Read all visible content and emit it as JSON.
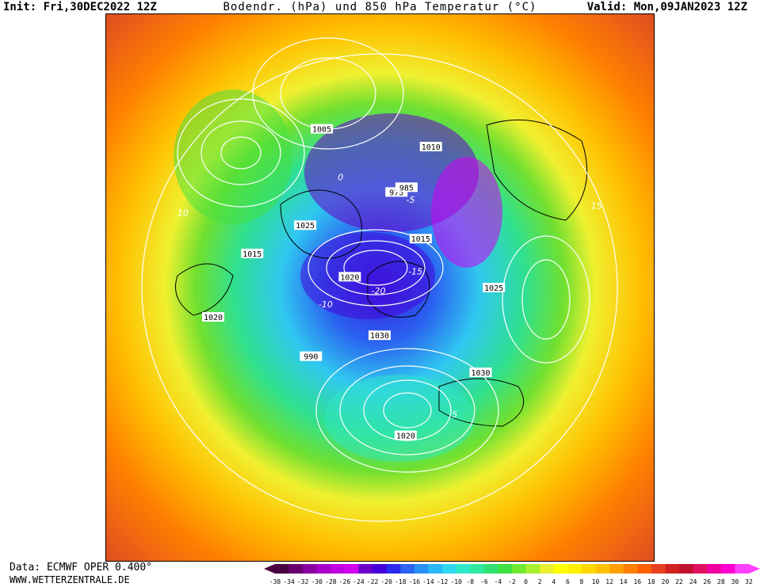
{
  "header": {
    "init_label": "Init: Fri,30DEC2022 12Z",
    "title": "Bodendr. (hPa) und 850 hPa Temperatur (°C)",
    "valid_label": "Valid: Mon,09JAN2023 12Z"
  },
  "footer": {
    "data_label": "Data: ECMWF OPER 0.400°",
    "site": "WWW.WETTERZENTRALE.DE"
  },
  "colorbar": {
    "ticks": [
      "-38",
      "-34",
      "-32",
      "-30",
      "-28",
      "-26",
      "-24",
      "-22",
      "-20",
      "-18",
      "-16",
      "-14",
      "-12",
      "-10",
      "-8",
      "-6",
      "-4",
      "-2",
      "0",
      "2",
      "4",
      "6",
      "8",
      "10",
      "12",
      "14",
      "16",
      "18",
      "20",
      "22",
      "24",
      "26",
      "28",
      "30",
      "32"
    ],
    "colors": [
      "#4a0040",
      "#6a0070",
      "#8a00a0",
      "#a800c8",
      "#c000e0",
      "#d000f0",
      "#6a00c8",
      "#4400d8",
      "#2a2af0",
      "#2a64f0",
      "#2a90f8",
      "#2ab8f8",
      "#30d8f0",
      "#30e8c8",
      "#30e8a0",
      "#30e070",
      "#40e040",
      "#70e830",
      "#a8f030",
      "#e8f030",
      "#ffff00",
      "#fff000",
      "#ffd800",
      "#ffc000",
      "#ffa000",
      "#ff8000",
      "#ff6000",
      "#e84020",
      "#d02020",
      "#c01030",
      "#e01060",
      "#f000a0",
      "#ff00d0",
      "#ff40ff"
    ]
  },
  "map": {
    "pressure_labels": [
      {
        "text": "1020",
        "lon": -70,
        "lat": 40
      },
      {
        "text": "1015",
        "lon": -95,
        "lat": 50
      },
      {
        "text": "1025",
        "lon": -120,
        "lat": 60
      },
      {
        "text": "1020",
        "lon": 20,
        "lat": 45
      },
      {
        "text": "1030",
        "lon": 60,
        "lat": 50
      },
      {
        "text": "1025",
        "lon": 100,
        "lat": 55
      },
      {
        "text": "1005",
        "lon": -150,
        "lat": 40
      },
      {
        "text": "1010",
        "lon": 170,
        "lat": 45
      },
      {
        "text": "990",
        "lon": -35,
        "lat": 60
      },
      {
        "text": "975",
        "lon": 180,
        "lat": 60
      },
      {
        "text": "985",
        "lon": 175,
        "lat": 58
      },
      {
        "text": "1015",
        "lon": 150,
        "lat": 70
      },
      {
        "text": "1030",
        "lon": 10,
        "lat": 75
      },
      {
        "text": "1020",
        "lon": -100,
        "lat": 80
      }
    ],
    "temperature_labels": [
      {
        "text": "-20",
        "lon": 0,
        "lat": 88
      },
      {
        "text": "-15",
        "lon": 120,
        "lat": 78
      },
      {
        "text": "-10",
        "lon": -60,
        "lat": 72
      },
      {
        "text": "-5",
        "lon": 170,
        "lat": 62
      },
      {
        "text": "0",
        "lon": -150,
        "lat": 55
      },
      {
        "text": "5",
        "lon": 40,
        "lat": 45
      },
      {
        "text": "10",
        "lon": -100,
        "lat": 30
      },
      {
        "text": "15",
        "lon": 120,
        "lat": 25
      }
    ]
  }
}
